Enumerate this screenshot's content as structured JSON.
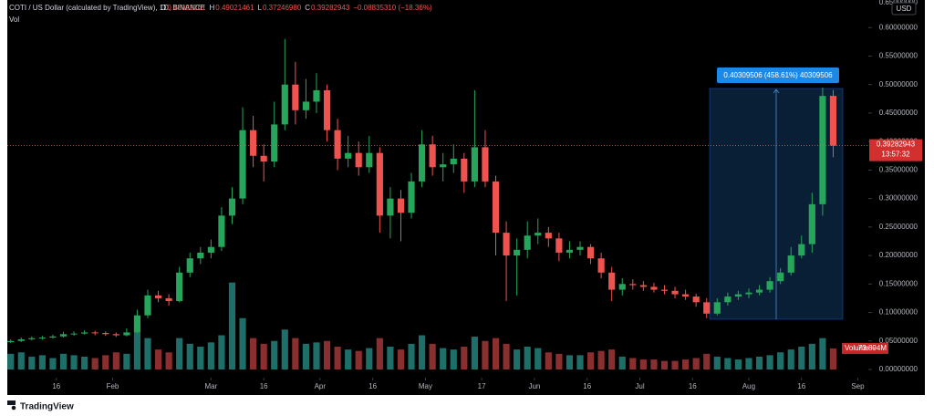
{
  "chart_data": {
    "type": "candlestick",
    "legend_title": "COTI / US Dollar (calculated by TradingView), 1D, BINANCE",
    "legend_values": [
      {
        "key": "O",
        "value": 0.48022261,
        "label": "0.48022261"
      },
      {
        "key": "H",
        "value": 0.49021461,
        "label": "0.49021461"
      },
      {
        "key": "L",
        "value": 0.3724698,
        "label": "0.37246980"
      },
      {
        "key": "C",
        "value": 0.39282943,
        "label": "0.39282943"
      }
    ],
    "change": {
      "value": -0.0883531,
      "label": "−0.08835310 (−18.36%)"
    },
    "volume_legend": "Vol",
    "currency": "USD",
    "brand": "TradingView",
    "measure_label": "0.40309506 (458.61%) 40309506",
    "last_price": {
      "value": 0.39282943,
      "label": "0.39282943"
    },
    "countdown": "13:57:32",
    "volume_tag": {
      "name": "Volume",
      "value": 73.894,
      "label": "73.894M"
    },
    "up_color": "#26a65b",
    "down_color": "#ef5350",
    "volume_up_color": "#1e6f6a",
    "volume_down_color": "#8a2f2f",
    "xlim": [
      0,
      246
    ],
    "xticks": [
      {
        "value": 15,
        "label": "16"
      },
      {
        "value": 31,
        "label": "Feb"
      },
      {
        "value": 59,
        "label": "Mar"
      },
      {
        "value": 74,
        "label": "16"
      },
      {
        "value": 90,
        "label": "Apr"
      },
      {
        "value": 105,
        "label": "16"
      },
      {
        "value": 120,
        "label": "May"
      },
      {
        "value": 136,
        "label": "17"
      },
      {
        "value": 151,
        "label": "Jun"
      },
      {
        "value": 166,
        "label": "16"
      },
      {
        "value": 181,
        "label": "Jul"
      },
      {
        "value": 196,
        "label": "16"
      },
      {
        "value": 212,
        "label": "Aug"
      },
      {
        "value": 227,
        "label": "16"
      },
      {
        "value": 243,
        "label": "Sep"
      }
    ],
    "ylim": [
      0,
      0.65
    ],
    "yticks": [
      {
        "value": 0,
        "label": "0.00000000"
      },
      {
        "value": 0.05,
        "label": "0.05000000"
      },
      {
        "value": 0.1,
        "label": "0.10000000"
      },
      {
        "value": 0.15,
        "label": "0.15000000"
      },
      {
        "value": 0.2,
        "label": "0.20000000"
      },
      {
        "value": 0.25,
        "label": "0.25000000"
      },
      {
        "value": 0.3,
        "label": "0.30000000"
      },
      {
        "value": 0.35,
        "label": "0.35000000"
      },
      {
        "value": 0.4,
        "label": "0.40000000"
      },
      {
        "value": 0.45,
        "label": "0.45000000"
      },
      {
        "value": 0.5,
        "label": "0.50000000"
      },
      {
        "value": 0.55,
        "label": "0.55000000"
      },
      {
        "value": 0.6,
        "label": "0.60000000"
      },
      {
        "value": 0.65,
        "label": "0.65000000"
      }
    ],
    "volume_lim": [
      0,
      1200
    ],
    "x": [
      2,
      5,
      8,
      11,
      14,
      17,
      20,
      23,
      26,
      29,
      32,
      35,
      38,
      41,
      44,
      47,
      50,
      53,
      56,
      59,
      62,
      65,
      68,
      71,
      74,
      77,
      80,
      83,
      86,
      89,
      92,
      95,
      98,
      101,
      104,
      107,
      110,
      113,
      116,
      119,
      122,
      125,
      128,
      131,
      134,
      137,
      140,
      143,
      146,
      149,
      152,
      155,
      158,
      161,
      164,
      167,
      170,
      173,
      176,
      179,
      182,
      185,
      188,
      191,
      194,
      197,
      200,
      203,
      206,
      209,
      212,
      215,
      218,
      221,
      224,
      227,
      230,
      233,
      236
    ],
    "open": [
      0.048,
      0.05,
      0.053,
      0.055,
      0.056,
      0.058,
      0.062,
      0.063,
      0.065,
      0.064,
      0.062,
      0.06,
      0.065,
      0.095,
      0.13,
      0.125,
      0.12,
      0.17,
      0.195,
      0.205,
      0.215,
      0.27,
      0.3,
      0.42,
      0.375,
      0.365,
      0.43,
      0.5,
      0.455,
      0.47,
      0.49,
      0.42,
      0.37,
      0.38,
      0.355,
      0.38,
      0.27,
      0.3,
      0.275,
      0.33,
      0.395,
      0.355,
      0.36,
      0.37,
      0.33,
      0.39,
      0.33,
      0.24,
      0.2,
      0.21,
      0.235,
      0.24,
      0.23,
      0.205,
      0.21,
      0.215,
      0.195,
      0.17,
      0.14,
      0.15,
      0.148,
      0.145,
      0.14,
      0.138,
      0.132,
      0.128,
      0.118,
      0.098,
      0.118,
      0.128,
      0.132,
      0.135,
      0.14,
      0.155,
      0.17,
      0.2,
      0.22,
      0.29,
      0.48022261
    ],
    "high": [
      0.053,
      0.056,
      0.058,
      0.059,
      0.061,
      0.066,
      0.067,
      0.069,
      0.068,
      0.067,
      0.065,
      0.072,
      0.105,
      0.14,
      0.138,
      0.132,
      0.18,
      0.205,
      0.215,
      0.228,
      0.285,
      0.32,
      0.46,
      0.445,
      0.395,
      0.47,
      0.58,
      0.54,
      0.51,
      0.52,
      0.5,
      0.44,
      0.41,
      0.4,
      0.41,
      0.39,
      0.32,
      0.315,
      0.345,
      0.42,
      0.41,
      0.38,
      0.395,
      0.38,
      0.49,
      0.42,
      0.34,
      0.26,
      0.23,
      0.26,
      0.265,
      0.25,
      0.24,
      0.225,
      0.225,
      0.22,
      0.205,
      0.18,
      0.16,
      0.158,
      0.155,
      0.152,
      0.148,
      0.145,
      0.14,
      0.133,
      0.125,
      0.125,
      0.135,
      0.138,
      0.142,
      0.148,
      0.162,
      0.178,
      0.215,
      0.235,
      0.31,
      0.495,
      0.49021461
    ],
    "low": [
      0.046,
      0.048,
      0.051,
      0.052,
      0.054,
      0.056,
      0.059,
      0.061,
      0.06,
      0.059,
      0.057,
      0.058,
      0.063,
      0.09,
      0.118,
      0.112,
      0.118,
      0.162,
      0.185,
      0.195,
      0.208,
      0.255,
      0.29,
      0.355,
      0.33,
      0.355,
      0.42,
      0.43,
      0.44,
      0.45,
      0.4,
      0.35,
      0.355,
      0.34,
      0.345,
      0.24,
      0.23,
      0.225,
      0.265,
      0.32,
      0.34,
      0.33,
      0.345,
      0.31,
      0.32,
      0.32,
      0.2,
      0.12,
      0.13,
      0.195,
      0.22,
      0.215,
      0.19,
      0.195,
      0.2,
      0.185,
      0.16,
      0.12,
      0.13,
      0.14,
      0.138,
      0.135,
      0.132,
      0.125,
      0.122,
      0.11,
      0.09,
      0.095,
      0.112,
      0.122,
      0.125,
      0.13,
      0.135,
      0.15,
      0.165,
      0.195,
      0.205,
      0.27,
      0.3724698
    ],
    "close": [
      0.05,
      0.053,
      0.055,
      0.056,
      0.058,
      0.062,
      0.063,
      0.065,
      0.064,
      0.062,
      0.06,
      0.065,
      0.095,
      0.13,
      0.125,
      0.12,
      0.17,
      0.195,
      0.205,
      0.215,
      0.27,
      0.3,
      0.42,
      0.375,
      0.365,
      0.43,
      0.5,
      0.455,
      0.47,
      0.49,
      0.42,
      0.37,
      0.38,
      0.355,
      0.38,
      0.27,
      0.3,
      0.275,
      0.33,
      0.395,
      0.355,
      0.36,
      0.37,
      0.33,
      0.39,
      0.33,
      0.24,
      0.2,
      0.21,
      0.235,
      0.24,
      0.23,
      0.205,
      0.21,
      0.215,
      0.195,
      0.17,
      0.14,
      0.15,
      0.148,
      0.145,
      0.14,
      0.138,
      0.132,
      0.128,
      0.118,
      0.098,
      0.118,
      0.128,
      0.132,
      0.135,
      0.14,
      0.155,
      0.17,
      0.2,
      0.22,
      0.29,
      0.48,
      0.39282943
    ],
    "volume": [
      55,
      60,
      45,
      50,
      40,
      55,
      50,
      45,
      40,
      50,
      60,
      55,
      130,
      110,
      70,
      60,
      110,
      90,
      80,
      95,
      120,
      305,
      180,
      110,
      90,
      100,
      140,
      110,
      90,
      95,
      100,
      80,
      70,
      65,
      75,
      110,
      80,
      70,
      90,
      120,
      90,
      75,
      70,
      80,
      115,
      100,
      110,
      90,
      70,
      80,
      75,
      60,
      55,
      50,
      50,
      60,
      65,
      70,
      45,
      40,
      35,
      35,
      30,
      30,
      35,
      40,
      55,
      45,
      40,
      35,
      40,
      45,
      50,
      60,
      70,
      80,
      90,
      110,
      73.894
    ]
  }
}
